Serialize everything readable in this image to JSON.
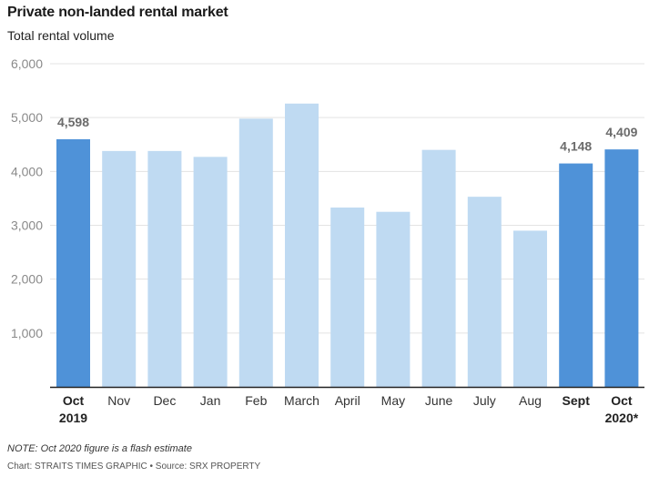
{
  "chart_data": {
    "type": "bar",
    "title": "Private non-landed rental market",
    "subtitle": "Total rental volume",
    "xlabel": "",
    "ylabel": "",
    "ylim": [
      0,
      6000
    ],
    "yticks": [
      1000,
      2000,
      3000,
      4000,
      5000,
      6000
    ],
    "ytick_labels": [
      "1,000",
      "2,000",
      "3,000",
      "4,000",
      "5,000",
      "6,000"
    ],
    "grid": true,
    "categories": [
      [
        "Oct",
        "2019"
      ],
      [
        "Nov"
      ],
      [
        "Dec"
      ],
      [
        "Jan"
      ],
      [
        "Feb"
      ],
      [
        "March"
      ],
      [
        "April"
      ],
      [
        "May"
      ],
      [
        "June"
      ],
      [
        "July"
      ],
      [
        "Aug"
      ],
      [
        "Sept"
      ],
      [
        "Oct",
        "2020*"
      ]
    ],
    "values": [
      4598,
      4380,
      4380,
      4270,
      4980,
      5260,
      3330,
      3250,
      4400,
      3530,
      2900,
      4148,
      4409
    ],
    "highlighted": [
      true,
      false,
      false,
      false,
      false,
      false,
      false,
      false,
      false,
      false,
      false,
      true,
      true
    ],
    "data_labels": [
      "4,598",
      "",
      "",
      "",
      "",
      "",
      "",
      "",
      "",
      "",
      "",
      "4,148",
      "4,409"
    ],
    "colors": {
      "highlight": "#4f92d8",
      "normal": "#bfdaf2",
      "grid": "#e3e3e3",
      "axis": "#222222"
    }
  },
  "footer": {
    "note": "NOTE: Oct 2020 figure is a flash estimate",
    "source": "Chart: STRAITS TIMES GRAPHIC • Source: SRX PROPERTY"
  }
}
